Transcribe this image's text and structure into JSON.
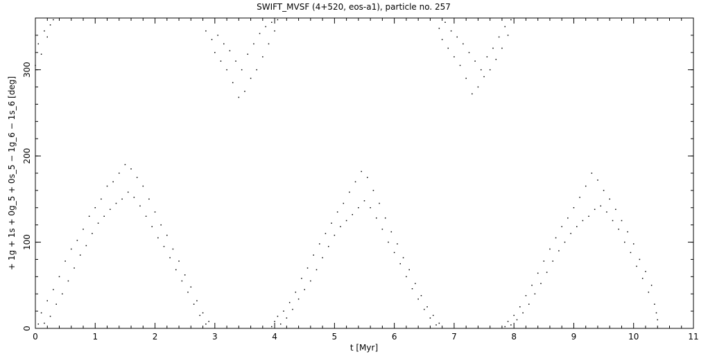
{
  "chart_data": {
    "type": "scatter",
    "title": "SWIFT_MVSF (4+520, eos-a1), particle no. 257",
    "xlabel": "t [Myr]",
    "ylabel": "+ 1g + 1s + 0g_5 + 0s_5 − 1g_6 − 1s_6 [deg]",
    "xlim": [
      0,
      11
    ],
    "ylim": [
      0,
      360
    ],
    "xticks": [
      0,
      1,
      2,
      3,
      4,
      5,
      6,
      7,
      8,
      9,
      10,
      11
    ],
    "yticks": [
      0,
      100,
      200,
      300
    ],
    "grid": false,
    "marker": "dot",
    "color": "#000000",
    "series": [
      {
        "values": [
          [
            0.05,
            5
          ],
          [
            0.1,
            18
          ],
          [
            0.15,
            6
          ],
          [
            0.2,
            32
          ],
          [
            0.25,
            14
          ],
          [
            0.3,
            45
          ],
          [
            0.35,
            28
          ],
          [
            0.4,
            60
          ],
          [
            0.45,
            40
          ],
          [
            0.5,
            78
          ],
          [
            0.55,
            55
          ],
          [
            0.6,
            92
          ],
          [
            0.65,
            70
          ],
          [
            0.7,
            102
          ],
          [
            0.75,
            85
          ],
          [
            0.8,
            115
          ],
          [
            0.85,
            96
          ],
          [
            0.9,
            130
          ],
          [
            0.95,
            110
          ],
          [
            1.0,
            140
          ],
          [
            1.05,
            122
          ],
          [
            1.1,
            150
          ],
          [
            1.15,
            130
          ],
          [
            1.2,
            165
          ],
          [
            1.25,
            138
          ],
          [
            1.3,
            170
          ],
          [
            1.35,
            145
          ],
          [
            1.4,
            180
          ],
          [
            1.45,
            150
          ],
          [
            1.5,
            190
          ],
          [
            1.55,
            158
          ],
          [
            1.6,
            185
          ],
          [
            1.65,
            152
          ],
          [
            1.7,
            175
          ],
          [
            1.75,
            142
          ],
          [
            1.8,
            165
          ],
          [
            1.85,
            130
          ],
          [
            1.9,
            150
          ],
          [
            1.95,
            118
          ],
          [
            2.0,
            135
          ],
          [
            2.05,
            105
          ],
          [
            2.1,
            120
          ],
          [
            2.15,
            95
          ],
          [
            2.2,
            108
          ],
          [
            2.25,
            82
          ],
          [
            2.3,
            92
          ],
          [
            2.35,
            68
          ],
          [
            2.4,
            78
          ],
          [
            2.45,
            55
          ],
          [
            2.5,
            62
          ],
          [
            2.55,
            42
          ],
          [
            2.6,
            48
          ],
          [
            2.65,
            28
          ],
          [
            2.7,
            32
          ],
          [
            2.75,
            15
          ],
          [
            2.8,
            18
          ],
          [
            2.85,
            5
          ],
          [
            2.9,
            8
          ],
          [
            0.0,
            305
          ],
          [
            0.05,
            330
          ],
          [
            0.1,
            318
          ],
          [
            0.15,
            345
          ],
          [
            0.2,
            338
          ],
          [
            0.25,
            352
          ],
          [
            0.3,
            358
          ],
          [
            2.85,
            345
          ],
          [
            2.95,
            335
          ],
          [
            3.0,
            320
          ],
          [
            3.05,
            340
          ],
          [
            3.1,
            310
          ],
          [
            3.15,
            330
          ],
          [
            3.2,
            300
          ],
          [
            3.25,
            322
          ],
          [
            3.3,
            285
          ],
          [
            3.35,
            310
          ],
          [
            3.4,
            268
          ],
          [
            3.45,
            300
          ],
          [
            3.5,
            275
          ],
          [
            3.55,
            318
          ],
          [
            3.6,
            290
          ],
          [
            3.65,
            330
          ],
          [
            3.7,
            300
          ],
          [
            3.75,
            342
          ],
          [
            3.8,
            315
          ],
          [
            3.85,
            350
          ],
          [
            3.9,
            330
          ],
          [
            3.95,
            355
          ],
          [
            4.0,
            345
          ],
          [
            4.05,
            358
          ],
          [
            3.95,
            2
          ],
          [
            4.0,
            8
          ],
          [
            4.05,
            14
          ],
          [
            4.1,
            5
          ],
          [
            4.15,
            20
          ],
          [
            4.2,
            12
          ],
          [
            4.25,
            30
          ],
          [
            4.3,
            22
          ],
          [
            4.35,
            42
          ],
          [
            4.4,
            34
          ],
          [
            4.45,
            58
          ],
          [
            4.5,
            45
          ],
          [
            4.55,
            70
          ],
          [
            4.6,
            55
          ],
          [
            4.65,
            85
          ],
          [
            4.7,
            68
          ],
          [
            4.75,
            98
          ],
          [
            4.8,
            82
          ],
          [
            4.85,
            110
          ],
          [
            4.9,
            95
          ],
          [
            4.95,
            122
          ],
          [
            5.0,
            108
          ],
          [
            5.05,
            135
          ],
          [
            5.1,
            118
          ],
          [
            5.15,
            145
          ],
          [
            5.2,
            125
          ],
          [
            5.25,
            158
          ],
          [
            5.3,
            132
          ],
          [
            5.35,
            170
          ],
          [
            5.4,
            140
          ],
          [
            5.45,
            182
          ],
          [
            5.5,
            148
          ],
          [
            5.55,
            175
          ],
          [
            5.6,
            140
          ],
          [
            5.65,
            160
          ],
          [
            5.7,
            128
          ],
          [
            5.75,
            145
          ],
          [
            5.8,
            115
          ],
          [
            5.85,
            128
          ],
          [
            5.9,
            100
          ],
          [
            5.95,
            112
          ],
          [
            6.0,
            88
          ],
          [
            6.05,
            98
          ],
          [
            6.1,
            75
          ],
          [
            6.15,
            82
          ],
          [
            6.2,
            60
          ],
          [
            6.25,
            68
          ],
          [
            6.3,
            46
          ],
          [
            6.35,
            52
          ],
          [
            6.4,
            34
          ],
          [
            6.45,
            38
          ],
          [
            6.5,
            22
          ],
          [
            6.55,
            25
          ],
          [
            6.6,
            12
          ],
          [
            6.65,
            15
          ],
          [
            6.7,
            4
          ],
          [
            6.75,
            6
          ],
          [
            6.75,
            348
          ],
          [
            6.8,
            335
          ],
          [
            6.85,
            355
          ],
          [
            6.9,
            325
          ],
          [
            6.95,
            345
          ],
          [
            7.0,
            315
          ],
          [
            7.05,
            338
          ],
          [
            7.1,
            305
          ],
          [
            7.15,
            330
          ],
          [
            7.2,
            290
          ],
          [
            7.25,
            320
          ],
          [
            7.3,
            272
          ],
          [
            7.35,
            310
          ],
          [
            7.4,
            280
          ],
          [
            7.45,
            300
          ],
          [
            7.5,
            292
          ],
          [
            7.55,
            315
          ],
          [
            7.6,
            300
          ],
          [
            7.65,
            325
          ],
          [
            7.7,
            312
          ],
          [
            7.75,
            338
          ],
          [
            7.8,
            325
          ],
          [
            7.85,
            350
          ],
          [
            7.9,
            340
          ],
          [
            7.95,
            358
          ],
          [
            7.85,
            2
          ],
          [
            7.9,
            8
          ],
          [
            7.95,
            4
          ],
          [
            8.0,
            15
          ],
          [
            8.05,
            10
          ],
          [
            8.1,
            25
          ],
          [
            8.15,
            18
          ],
          [
            8.2,
            38
          ],
          [
            8.25,
            28
          ],
          [
            8.3,
            50
          ],
          [
            8.35,
            40
          ],
          [
            8.4,
            64
          ],
          [
            8.45,
            52
          ],
          [
            8.5,
            78
          ],
          [
            8.55,
            65
          ],
          [
            8.6,
            92
          ],
          [
            8.65,
            78
          ],
          [
            8.7,
            105
          ],
          [
            8.75,
            90
          ],
          [
            8.8,
            118
          ],
          [
            8.85,
            100
          ],
          [
            8.9,
            128
          ],
          [
            8.95,
            110
          ],
          [
            9.0,
            140
          ],
          [
            9.05,
            118
          ],
          [
            9.1,
            152
          ],
          [
            9.15,
            125
          ],
          [
            9.2,
            165
          ],
          [
            9.25,
            130
          ],
          [
            9.3,
            180
          ],
          [
            9.35,
            138
          ],
          [
            9.4,
            172
          ],
          [
            9.45,
            142
          ],
          [
            9.5,
            160
          ],
          [
            9.55,
            135
          ],
          [
            9.6,
            150
          ],
          [
            9.65,
            125
          ],
          [
            9.7,
            138
          ],
          [
            9.75,
            115
          ],
          [
            9.8,
            125
          ],
          [
            9.85,
            100
          ],
          [
            9.9,
            112
          ],
          [
            9.95,
            88
          ],
          [
            10.0,
            98
          ],
          [
            10.05,
            72
          ],
          [
            10.1,
            80
          ],
          [
            10.15,
            58
          ],
          [
            10.2,
            66
          ],
          [
            10.25,
            42
          ],
          [
            10.3,
            50
          ],
          [
            10.35,
            28
          ],
          [
            10.38,
            18
          ],
          [
            10.4,
            10
          ]
        ]
      }
    ]
  }
}
